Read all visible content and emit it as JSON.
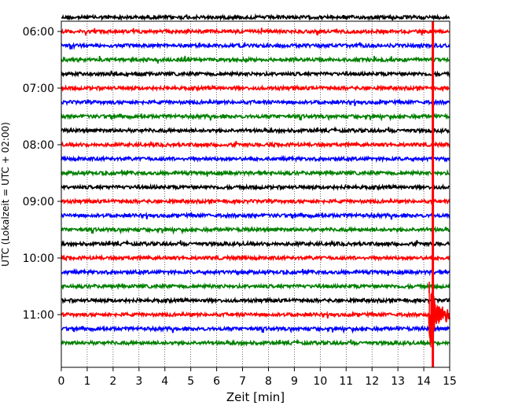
{
  "chart_data": {
    "type": "line",
    "title": "",
    "xlabel": "Zeit  [min]",
    "ylabel": "UTC (Lokalzeit = UTC + 02:00)",
    "xlim": [
      0,
      15
    ],
    "x_ticks": [
      "0",
      "1",
      "2",
      "3",
      "4",
      "5",
      "6",
      "7",
      "8",
      "9",
      "10",
      "11",
      "12",
      "13",
      "14",
      "15"
    ],
    "y_ticks": [
      "06:00",
      "07:00",
      "08:00",
      "09:00",
      "10:00",
      "11:00"
    ],
    "grid": "vertical dotted at each minute",
    "traces": [
      {
        "start": "05:45",
        "color": "#000000"
      },
      {
        "start": "06:00",
        "color": "#ff0000"
      },
      {
        "start": "06:15",
        "color": "#0000ff"
      },
      {
        "start": "06:30",
        "color": "#008000"
      },
      {
        "start": "06:45",
        "color": "#000000"
      },
      {
        "start": "07:00",
        "color": "#ff0000"
      },
      {
        "start": "07:15",
        "color": "#0000ff"
      },
      {
        "start": "07:30",
        "color": "#008000"
      },
      {
        "start": "07:45",
        "color": "#000000"
      },
      {
        "start": "08:00",
        "color": "#ff0000"
      },
      {
        "start": "08:15",
        "color": "#0000ff"
      },
      {
        "start": "08:30",
        "color": "#008000"
      },
      {
        "start": "08:45",
        "color": "#000000"
      },
      {
        "start": "09:00",
        "color": "#ff0000"
      },
      {
        "start": "09:15",
        "color": "#0000ff"
      },
      {
        "start": "09:30",
        "color": "#008000"
      },
      {
        "start": "09:45",
        "color": "#000000"
      },
      {
        "start": "10:00",
        "color": "#ff0000"
      },
      {
        "start": "10:15",
        "color": "#0000ff"
      },
      {
        "start": "10:30",
        "color": "#008000"
      },
      {
        "start": "10:45",
        "color": "#000000"
      },
      {
        "start": "11:00",
        "color": "#ff0000"
      },
      {
        "start": "11:15",
        "color": "#0000ff"
      },
      {
        "start": "11:30",
        "color": "#008000"
      }
    ],
    "event": {
      "trace_start": "11:00",
      "onset_min": 14.2,
      "peak_min": 14.35,
      "color": "#ff0000"
    }
  }
}
